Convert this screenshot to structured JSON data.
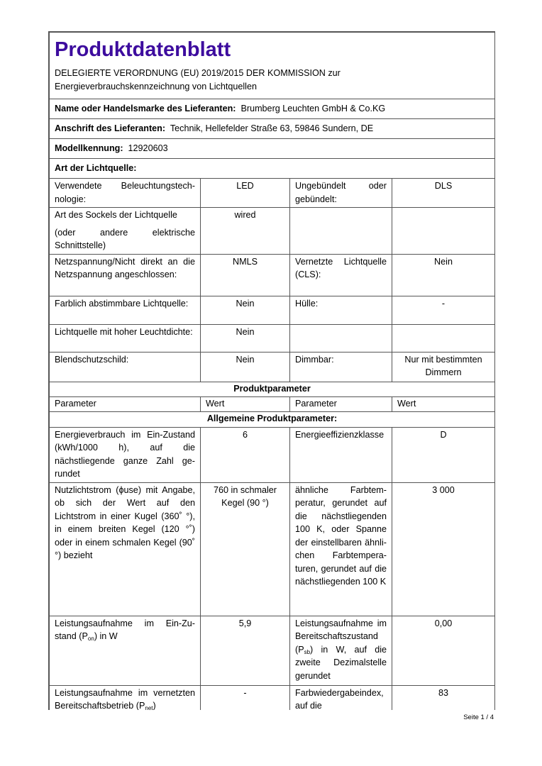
{
  "header": {
    "title": "Produktdatenblatt",
    "subtitle_line1": "DELEGIERTE VERORDNUNG (EU) 2019/2015 DER KOMMISSION zur",
    "subtitle_line2": "Energieverbrauchskennzeichnung von Lichtquellen"
  },
  "supplier": {
    "name_label": "Name oder Handelsmarke des Lieferanten:",
    "name_value": "Brumberg Leuchten GmbH & Co.KG",
    "address_label": "Anschrift des Lieferanten:",
    "address_value": "Technik, Hellefelder Straße 63, 59846 Sundern, DE",
    "model_label": "Modellkennung:",
    "model_value": "12920603"
  },
  "light_source_type": {
    "heading": "Art der Lichtquelle:",
    "rows": [
      {
        "p1": "Verwendete Beleuchtungstech­nologie:",
        "v1": "LED",
        "p2": "Ungebündelt oder gebündelt:",
        "v2": "DLS",
        "h": 41
      },
      {
        "p1": "Art des Sockels der Lichtquelle",
        "p1b": "(oder andere elektrische Schnittstelle)",
        "v1": "wired",
        "p2": "",
        "v2": "",
        "h": 63
      },
      {
        "p1": "Netzspannung/Nicht direkt an die Netzspannung angeschlos­sen:",
        "v1": "NMLS",
        "p2": "Vernetzte Lichtquel­le (CLS):",
        "v2": "Nein",
        "h": 59
      },
      {
        "p1": "Farblich abstimmbare Licht­quelle:",
        "v1": "Nein",
        "p2": "Hülle:",
        "v2": "-",
        "h": 40
      },
      {
        "p1": "Lichtquelle mit hoher Leucht­dichte:",
        "v1": "Nein",
        "p2": "",
        "v2": "",
        "h": 39
      },
      {
        "p1": "Blendschutzschild:",
        "v1": "Nein",
        "p2": "Dimmbar:",
        "v2": "Nur mit bestimm­ten Dimmern",
        "h": 42
      }
    ]
  },
  "product_parameters": {
    "heading": "Produktparameter",
    "columns": [
      "Parameter",
      "Wert",
      "Parameter",
      "Wert"
    ],
    "general_heading": "Allgemeine Produktparameter:",
    "rows": [
      {
        "p1": "Energieverbrauch im Ein-Zu­stand (kWh/1000 h), auf die nächstliegende ganze Zahl ge­rundet",
        "v1": "6",
        "p2": "Energieeffizienzklas­se",
        "v2": "D",
        "h": 77
      },
      {
        "p1": "Nutzlichtstrom (ϕuse) mit An­gabe, ob sich der Wert auf den Lichtstrom in einer Kugel (360˚ °), in einem breiten Kegel (120 °˚) oder in einem schmalen Kegel (90˚ °) bezieht",
        "v1": "760 in schma­ler Kegel (90 °)",
        "p2": "ähnliche Farbtem­peratur, gerundet auf die nächst­liegenden 100 K, oder Spanne der einstellbaren ähnli­chen Farbtempera­turen, gerundet auf die nächstliegenden 100 K",
        "v2": "3 000",
        "h": 188
      },
      {
        "p1": "Leistungsaufnahme im Ein-Zu­stand (P",
        "p1sub": "on",
        "p1end": ") in W",
        "v1": "5,9",
        "p2": "Leistungsaufnahme im Bereitschaftszu­stand (P",
        "p2sub": "sb",
        "p2end": ") in W, auf die zweite Dezimal­stelle gerundet",
        "v2": "0,00",
        "h": 98
      },
      {
        "p1": "Leistungsaufnahme im vernetz­ten Bereitschaftsbetrieb (P",
        "p1sub": "net",
        "p1end": ")",
        "v1": "-",
        "p2": "Farbwiedergabein­dex, auf die",
        "v2": "83",
        "h": 60
      }
    ]
  },
  "footer": {
    "page": "Seite 1 / 4"
  },
  "colors": {
    "title": "#3d0c9e",
    "border": "#555555"
  }
}
